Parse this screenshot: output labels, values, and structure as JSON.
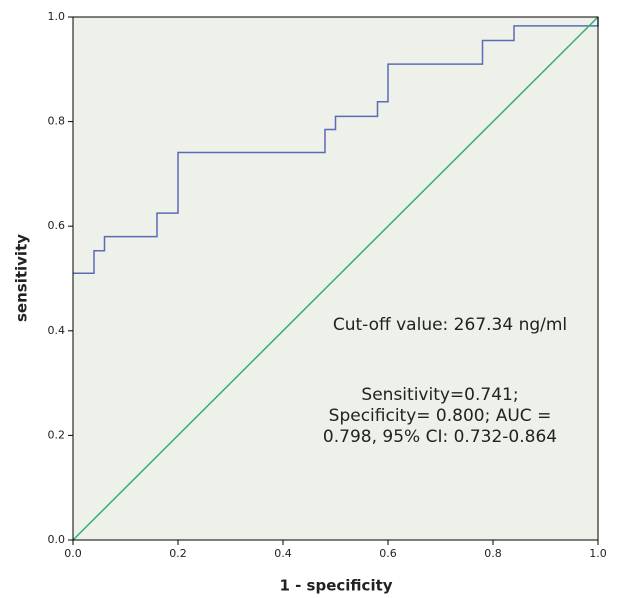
{
  "chart_data": {
    "type": "line",
    "x_label": "1 - specificity",
    "y_label": "sensitivity",
    "annotations": [
      "Cut-off value: 267.34 ng/ml",
      "Sensitivity=0.741;",
      "Specificity= 0.800;   AUC =",
      "0.798, 95% CI: 0.732-0.864"
    ],
    "series": [
      {
        "color": "#5b6bb5",
        "x": [
          0,
          0.04,
          0.04,
          0.06,
          0.06,
          0.16,
          0.16,
          0.2,
          0.2,
          0.48,
          0.48,
          0.5,
          0.5,
          0.58,
          0.58,
          0.6,
          0.6,
          0.78,
          0.78,
          0.84,
          0.84,
          1.0,
          1.0
        ],
        "values": [
          0.51,
          0.51,
          0.553,
          0.553,
          0.58,
          0.58,
          0.625,
          0.625,
          0.741,
          0.741,
          0.785,
          0.785,
          0.81,
          0.81,
          0.838,
          0.838,
          0.91,
          0.91,
          0.955,
          0.955,
          0.983,
          0.983,
          1.0
        ]
      },
      {
        "color": "#2fb36a",
        "x": [
          0,
          1.0
        ],
        "values": [
          0,
          1.0
        ]
      }
    ],
    "xlim": [
      0,
      1.0
    ],
    "ylim": [
      0,
      1.0
    ],
    "xticks": [
      {
        "value": 0,
        "label": "0.0"
      },
      0.2,
      0.4,
      0.6,
      0.8,
      {
        "value": 1.0,
        "label": "1.0"
      }
    ],
    "yticks": [
      {
        "value": 0,
        "label": "0.0"
      },
      0.2,
      0.4,
      0.6,
      0.8,
      {
        "value": 1.0,
        "label": "1.0"
      }
    ],
    "background": "#eef0ea"
  }
}
